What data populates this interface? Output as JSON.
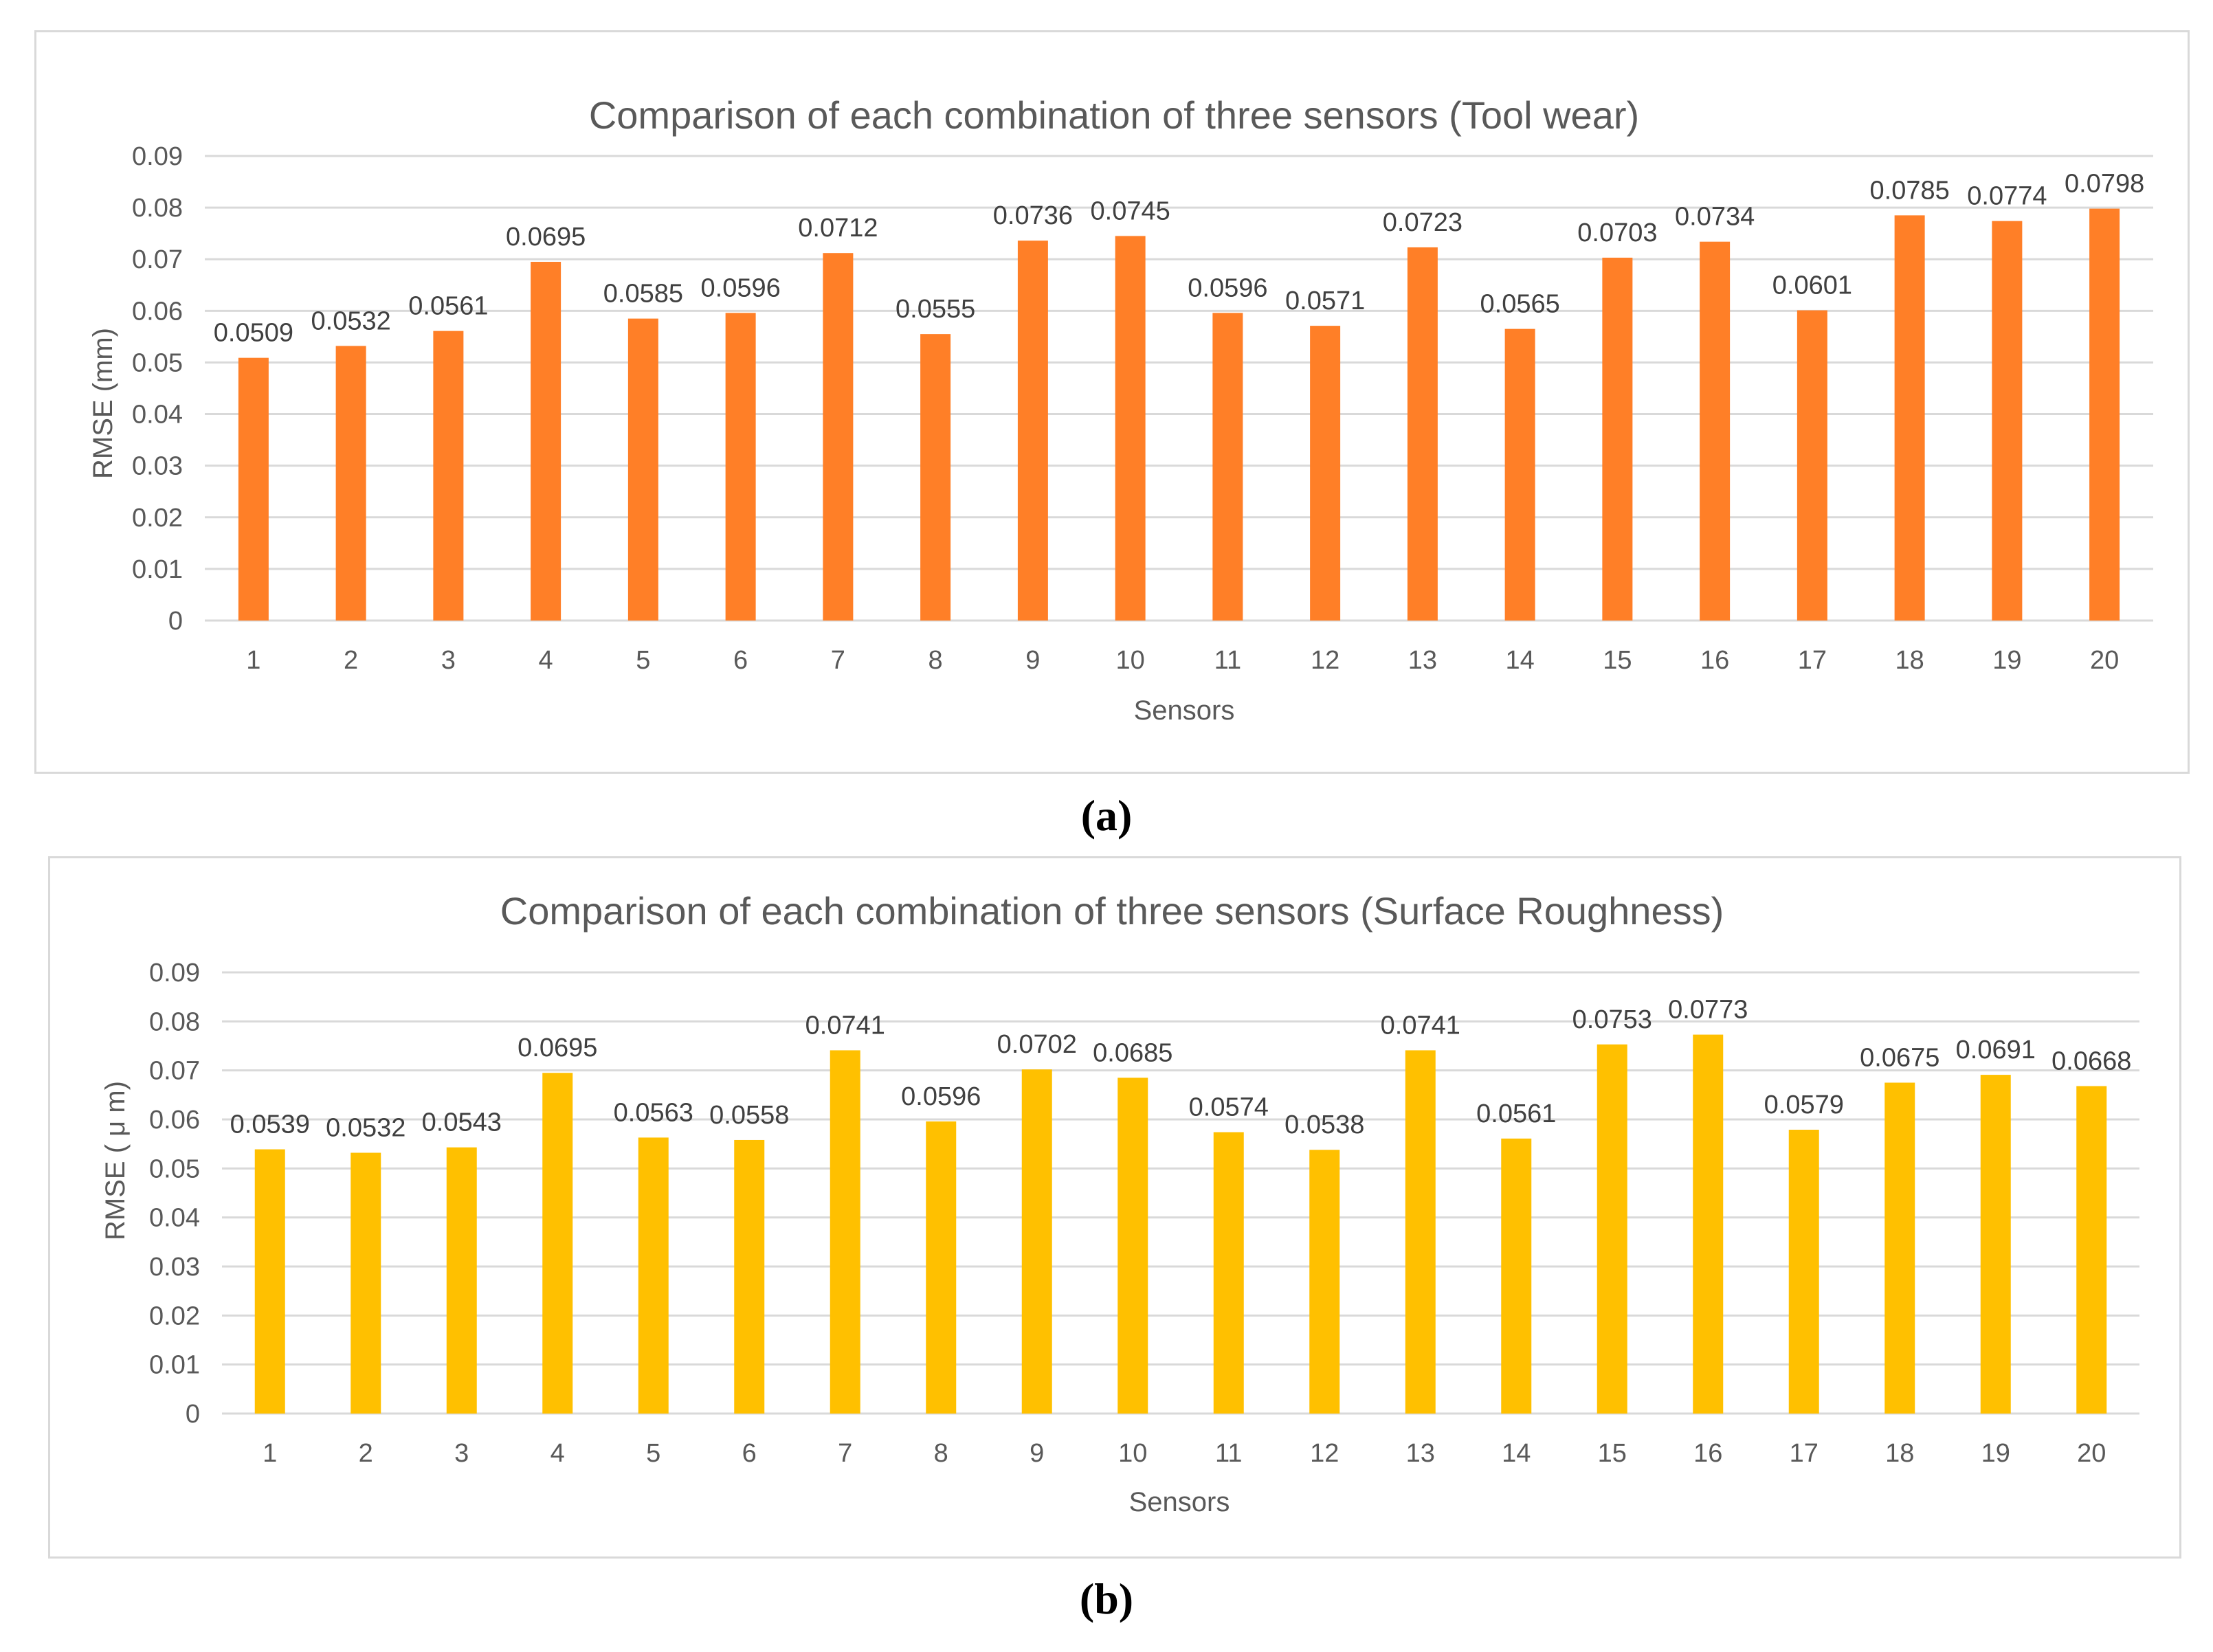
{
  "chart_data": [
    {
      "type": "bar",
      "title": "Comparison of each combination of three sensors (Tool wear)",
      "xlabel": "Sensors",
      "ylabel": "RMSE (mm)",
      "categories": [
        "1",
        "2",
        "3",
        "4",
        "5",
        "6",
        "7",
        "8",
        "9",
        "10",
        "11",
        "12",
        "13",
        "14",
        "15",
        "16",
        "17",
        "18",
        "19",
        "20"
      ],
      "values": [
        0.0509,
        0.0532,
        0.0561,
        0.0695,
        0.0585,
        0.0596,
        0.0712,
        0.0555,
        0.0736,
        0.0745,
        0.0596,
        0.0571,
        0.0723,
        0.0565,
        0.0703,
        0.0734,
        0.0601,
        0.0785,
        0.0774,
        0.0798
      ],
      "data_labels": [
        "0.0509",
        "0.0532",
        "0.0561",
        "0.0695",
        "0.0585",
        "0.0596",
        "0.0712",
        "0.0555",
        "0.0736",
        "0.0745",
        "0.0596",
        "0.0571",
        "0.0723",
        "0.0565",
        "0.0703",
        "0.0734",
        "0.0601",
        "0.0785",
        "0.0774",
        "0.0798"
      ],
      "yticks": [
        "0",
        "0.01",
        "0.02",
        "0.03",
        "0.04",
        "0.05",
        "0.06",
        "0.07",
        "0.08",
        "0.09"
      ],
      "ylim": [
        0,
        0.09
      ],
      "grid": true,
      "bar_color": "#FF7F27"
    },
    {
      "type": "bar",
      "title": "Comparison of each combination of three sensors (Surface Roughness)",
      "xlabel": "Sensors",
      "ylabel": "RMSE ( μ m)",
      "categories": [
        "1",
        "2",
        "3",
        "4",
        "5",
        "6",
        "7",
        "8",
        "9",
        "10",
        "11",
        "12",
        "13",
        "14",
        "15",
        "16",
        "17",
        "18",
        "19",
        "20"
      ],
      "values": [
        0.0539,
        0.0532,
        0.0543,
        0.0695,
        0.0563,
        0.0558,
        0.0741,
        0.0596,
        0.0702,
        0.0685,
        0.0574,
        0.0538,
        0.0741,
        0.0561,
        0.0753,
        0.0773,
        0.0579,
        0.0675,
        0.0691,
        0.0668
      ],
      "data_labels": [
        "0.0539",
        "0.0532",
        "0.0543",
        "0.0695",
        "0.0563",
        "0.0558",
        "0.0741",
        "0.0596",
        "0.0702",
        "0.0685",
        "0.0574",
        "0.0538",
        "0.0741",
        "0.0561",
        "0.0753",
        "0.0773",
        "0.0579",
        "0.0675",
        "0.0691",
        "0.0668"
      ],
      "yticks": [
        "0",
        "0.01",
        "0.02",
        "0.03",
        "0.04",
        "0.05",
        "0.06",
        "0.07",
        "0.08",
        "0.09"
      ],
      "ylim": [
        0,
        0.09
      ],
      "grid": true,
      "bar_color": "#FFC000"
    }
  ],
  "captions": {
    "a": "(a)",
    "b": "(b)"
  }
}
